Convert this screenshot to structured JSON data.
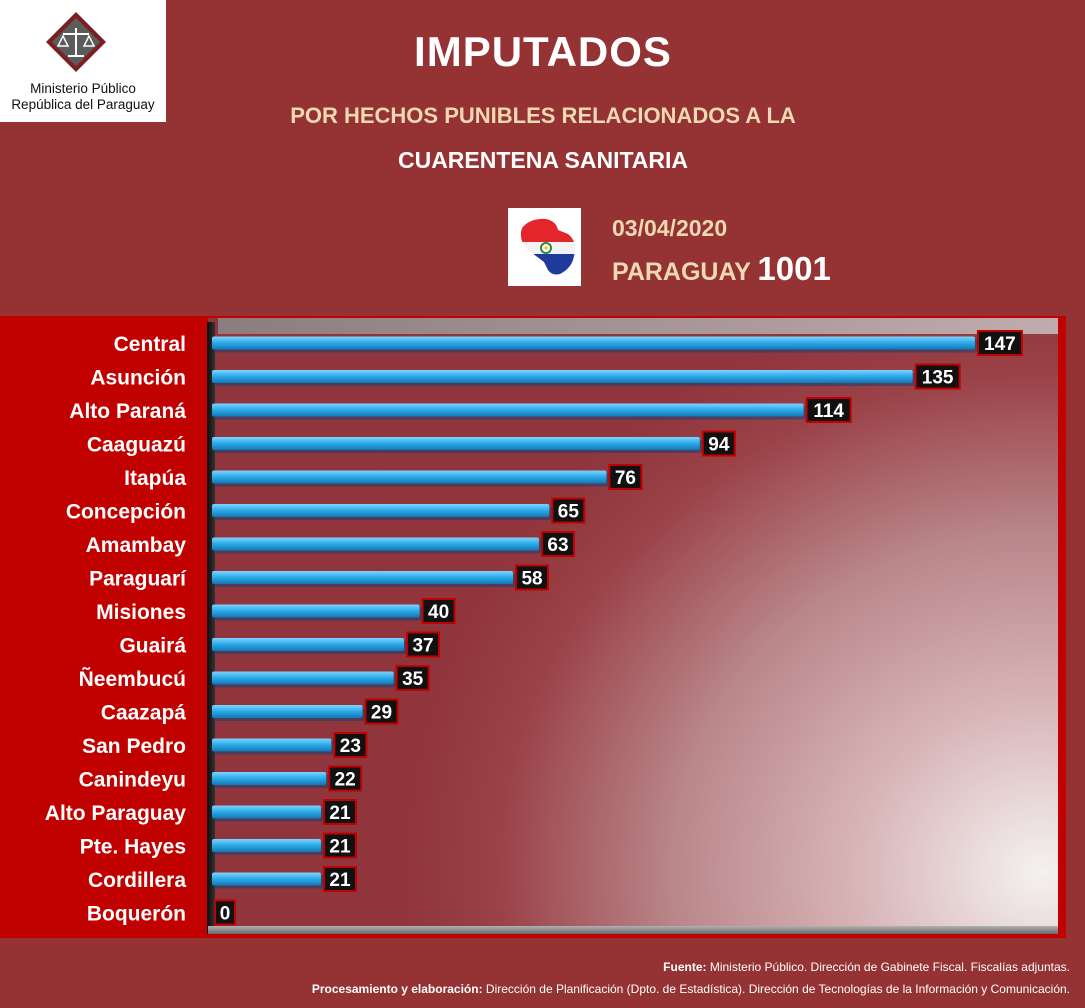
{
  "logo": {
    "name_line1": "Ministerio Público",
    "name_line2": "República del Paraguay",
    "icon": "scales-of-justice-icon"
  },
  "header": {
    "title": "IMPUTADOS",
    "subtitle1": "POR HECHOS PUNIBLES RELACIONADOS A LA",
    "subtitle2": "CUARENTENA SANITARIA",
    "date": "03/04/2020",
    "country_label": "PARAGUAY",
    "country_total": "1001",
    "flag_icon": "paraguay-map-flag-icon"
  },
  "colors": {
    "background": "#953334",
    "frame": "#c10000",
    "bar": "#29a9e6",
    "label_box": "#111111"
  },
  "chart_data": {
    "type": "bar",
    "orientation": "horizontal",
    "categories": [
      "Central",
      "Asunción",
      "Alto Paraná",
      "Caaguazú",
      "Itapúa",
      "Concepción",
      "Amambay",
      "Paraguarí",
      "Misiones",
      "Guairá",
      "Ñeembucú",
      "Caazapá",
      "San Pedro",
      "Canindeyu",
      "Alto Paraguay",
      "Pte. Hayes",
      "Cordillera",
      "Boquerón"
    ],
    "values": [
      147,
      135,
      114,
      94,
      76,
      65,
      63,
      58,
      40,
      37,
      35,
      29,
      23,
      22,
      21,
      21,
      21,
      0
    ],
    "title": "",
    "xlabel": "",
    "ylabel": "",
    "xlim": [
      0,
      158
    ],
    "grid": false,
    "data_labels": true
  },
  "footer": {
    "source_label": "Fuente:",
    "source_text": " Ministerio Público. Dirección de Gabinete Fiscal. Fiscalías adjuntas.",
    "processing_label": "Procesamiento y elaboración:",
    "processing_text": " Dirección de Planificación (Dpto. de Estadística). Dirección de Tecnologías de la Información y Comunicación."
  }
}
